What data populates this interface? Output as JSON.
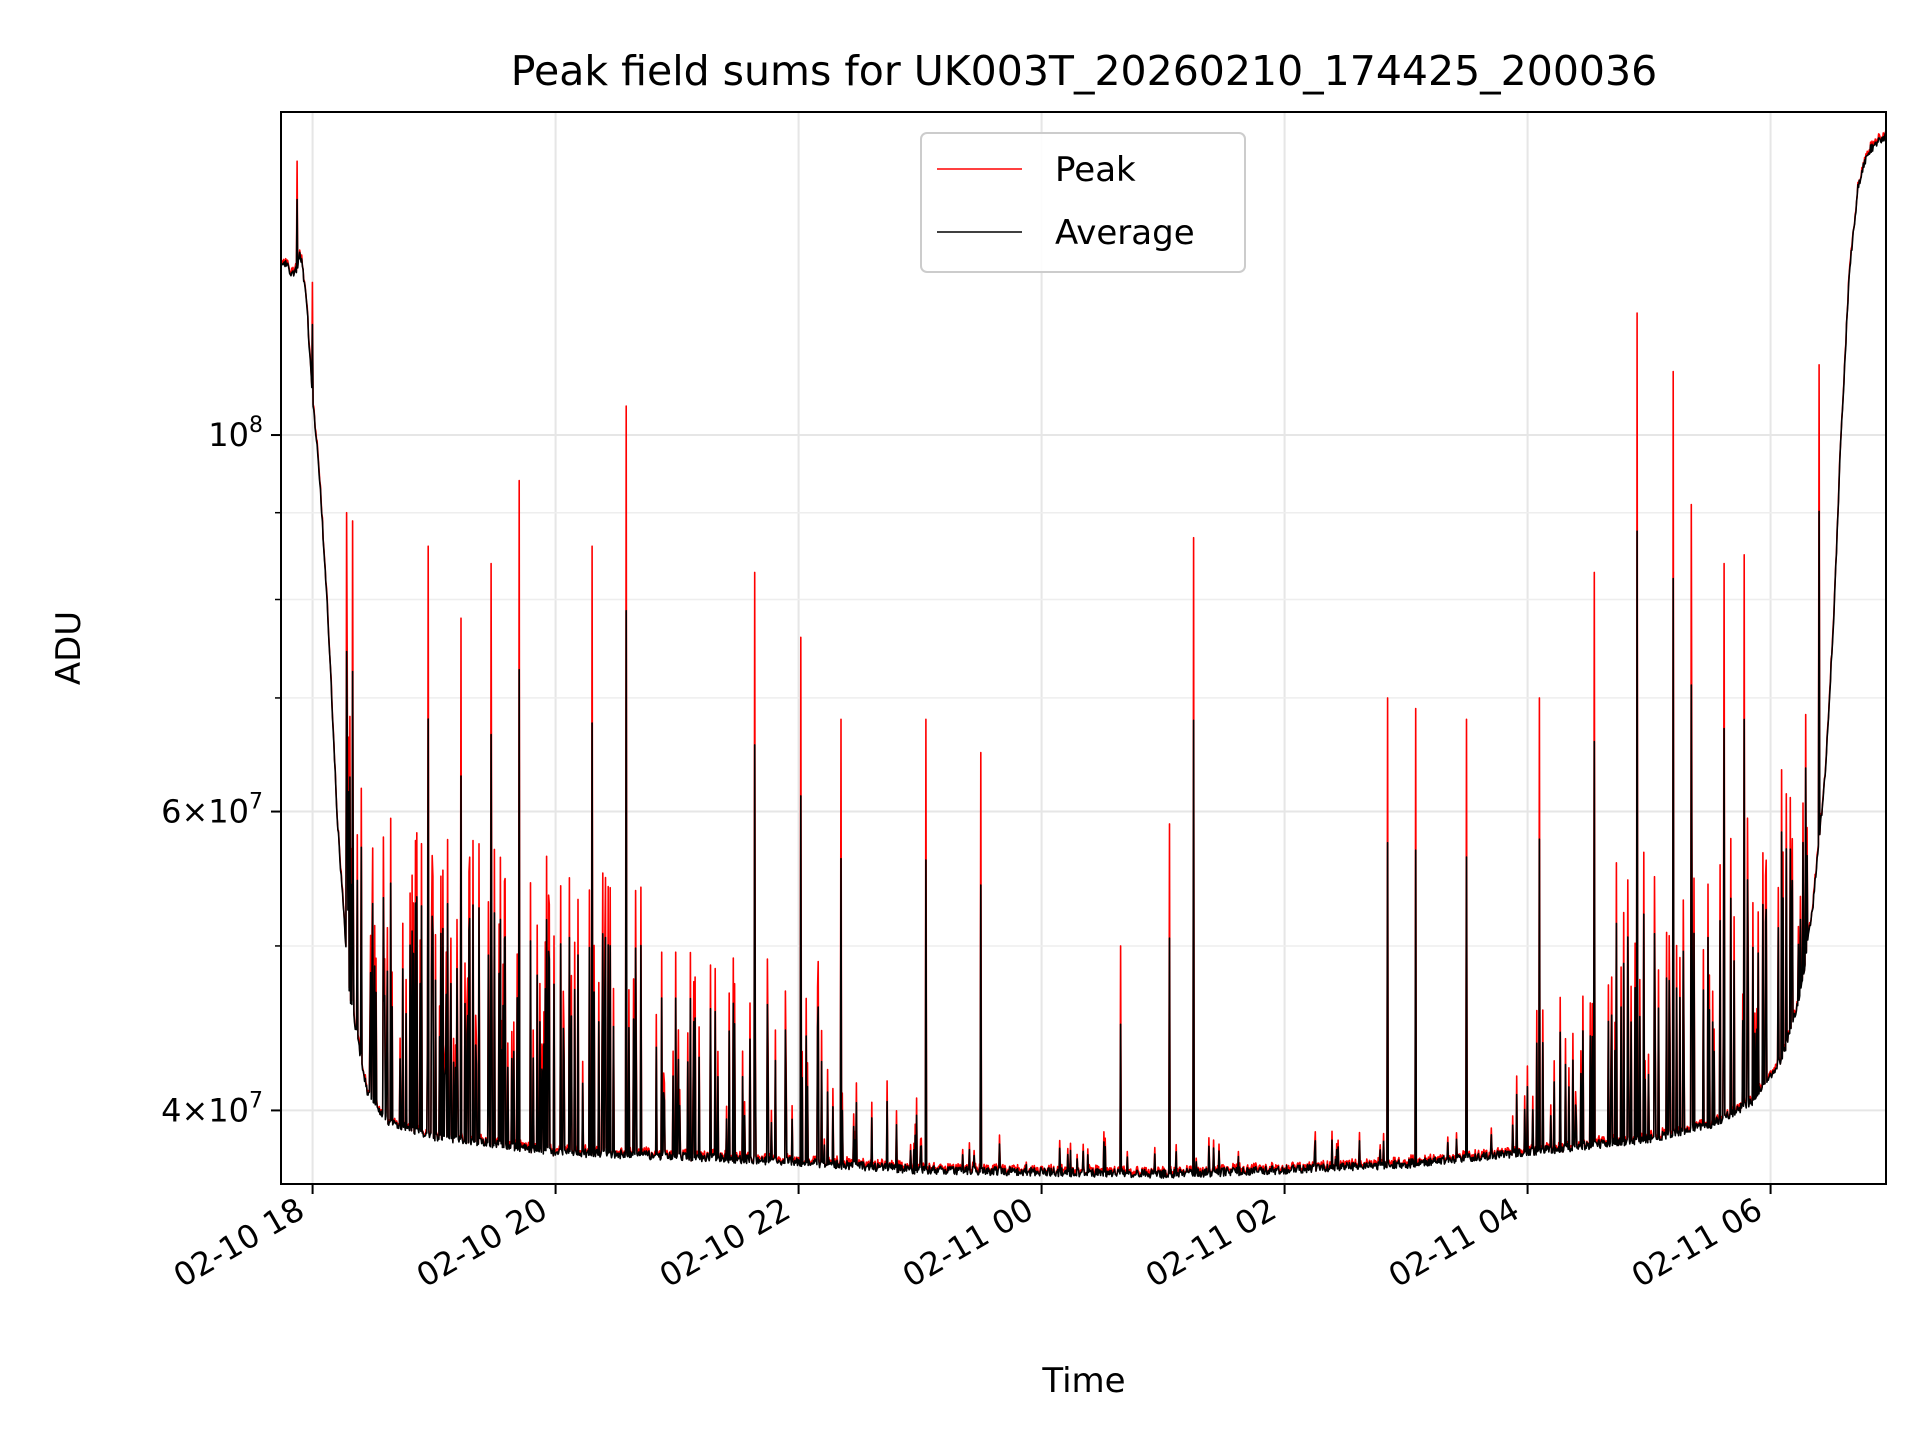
{
  "chart_data": {
    "type": "line",
    "title": "Peak field sums for UK003T_20260210_174425_200036",
    "xlabel": "Time",
    "ylabel": "ADU",
    "yscale": "log",
    "ylim": [
      36200000,
      155000000
    ],
    "xlim_hours": [
      17.74,
      30.95
    ],
    "grid": true,
    "legend_position": "top-center",
    "x_ticks": [
      {
        "hour": 18,
        "label": "02-10 18"
      },
      {
        "hour": 20,
        "label": "02-10 20"
      },
      {
        "hour": 22,
        "label": "02-10 22"
      },
      {
        "hour": 24,
        "label": "02-11 00"
      },
      {
        "hour": 26,
        "label": "02-11 02"
      },
      {
        "hour": 28,
        "label": "02-11 04"
      },
      {
        "hour": 30,
        "label": "02-11 06"
      }
    ],
    "y_major_ticks": [
      {
        "value": 40000000,
        "mantissa": "4",
        "exponent": "7"
      },
      {
        "value": 60000000,
        "mantissa": "6",
        "exponent": "7"
      },
      {
        "value": 100000000,
        "mantissa": "10",
        "exponent": "8"
      }
    ],
    "y_minor_ticks": [
      50000000,
      70000000,
      80000000,
      90000000
    ],
    "series": [
      {
        "name": "Peak",
        "color": "#ff0000"
      },
      {
        "name": "Average",
        "color": "#000000"
      }
    ],
    "baseline_anchors": [
      [
        17.74,
        127000000
      ],
      [
        17.85,
        124000000
      ],
      [
        17.9,
        128000000
      ],
      [
        17.95,
        120000000
      ],
      [
        18.0,
        105000000
      ],
      [
        18.05,
        96000000
      ],
      [
        18.12,
        80000000
      ],
      [
        18.2,
        60000000
      ],
      [
        18.3,
        47000000
      ],
      [
        18.45,
        41000000
      ],
      [
        18.6,
        39500000
      ],
      [
        19.0,
        38600000
      ],
      [
        20.0,
        37800000
      ],
      [
        21.0,
        37600000
      ],
      [
        22.0,
        37300000
      ],
      [
        23.0,
        36900000
      ],
      [
        24.0,
        36800000
      ],
      [
        25.0,
        36700000
      ],
      [
        26.0,
        36900000
      ],
      [
        27.0,
        37200000
      ],
      [
        28.0,
        37800000
      ],
      [
        29.0,
        38500000
      ],
      [
        29.5,
        39200000
      ],
      [
        29.85,
        40500000
      ],
      [
        30.1,
        43000000
      ],
      [
        30.25,
        47000000
      ],
      [
        30.35,
        53000000
      ],
      [
        30.45,
        63000000
      ],
      [
        30.52,
        78000000
      ],
      [
        30.58,
        100000000
      ],
      [
        30.65,
        125000000
      ],
      [
        30.72,
        140000000
      ],
      [
        30.8,
        147000000
      ],
      [
        30.95,
        150000000
      ]
    ],
    "peak_excursions": [
      [
        17.87,
        145000000
      ],
      [
        18.0,
        123000000
      ],
      [
        18.28,
        90000000
      ],
      [
        18.33,
        89000000
      ],
      [
        18.95,
        86000000
      ],
      [
        19.22,
        78000000
      ],
      [
        19.47,
        84000000
      ],
      [
        19.7,
        94000000
      ],
      [
        20.3,
        86000000
      ],
      [
        20.58,
        104000000
      ],
      [
        21.64,
        83000000
      ],
      [
        22.02,
        76000000
      ],
      [
        22.35,
        68000000
      ],
      [
        23.05,
        68000000
      ],
      [
        23.5,
        65000000
      ],
      [
        24.65,
        50000000
      ],
      [
        25.05,
        59000000
      ],
      [
        25.25,
        87000000
      ],
      [
        26.85,
        70000000
      ],
      [
        27.08,
        69000000
      ],
      [
        27.5,
        68000000
      ],
      [
        28.1,
        70000000
      ],
      [
        28.55,
        83000000
      ],
      [
        28.9,
        118000000
      ],
      [
        29.2,
        109000000
      ],
      [
        29.35,
        91000000
      ],
      [
        29.62,
        84000000
      ],
      [
        29.78,
        85000000
      ],
      [
        30.4,
        110000000
      ]
    ]
  }
}
